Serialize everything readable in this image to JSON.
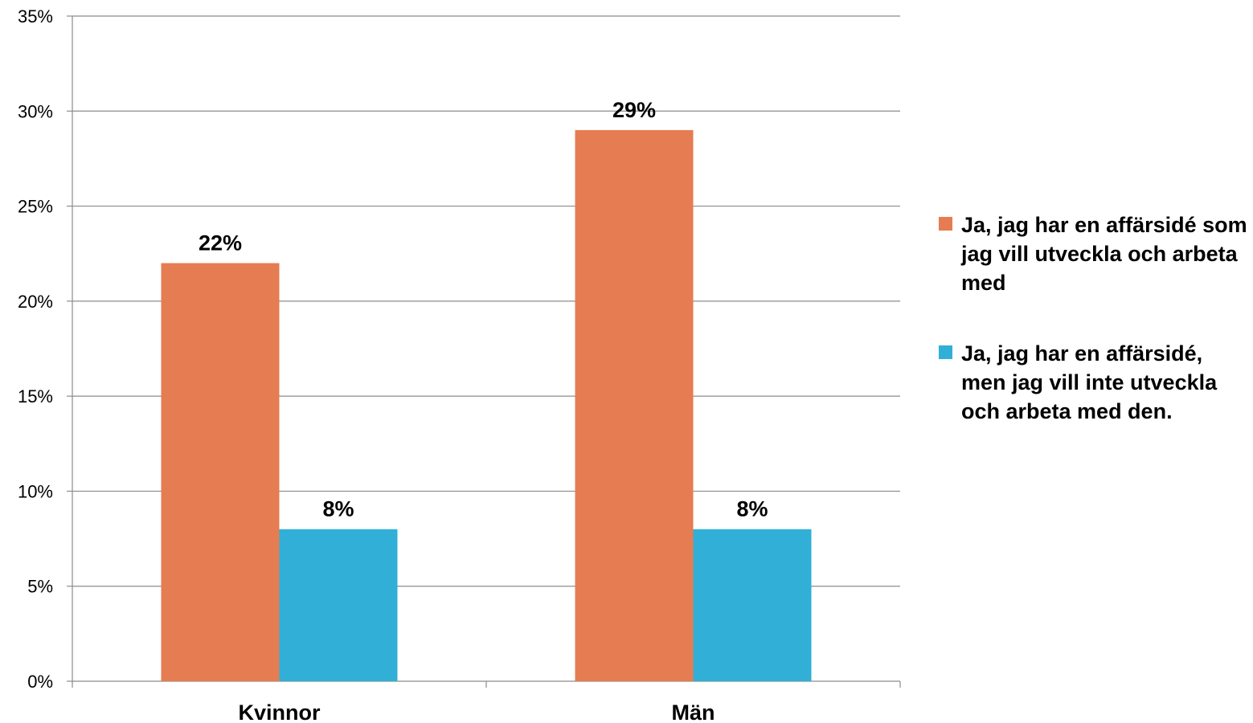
{
  "chart_data": {
    "type": "bar",
    "categories": [
      "Kvinnor",
      "Män"
    ],
    "series": [
      {
        "name": "Ja, jag har en affärsidé som jag vill utveckla och arbeta med",
        "values": [
          22,
          29
        ],
        "labels": [
          "22%",
          "29%"
        ],
        "color": "#E67C52"
      },
      {
        "name": "Ja, jag har en affärsidé, men jag vill inte utveckla och arbeta med den.",
        "values": [
          8,
          8
        ],
        "labels": [
          "8%",
          "8%"
        ],
        "color": "#31AFD6"
      }
    ],
    "ylim": [
      0,
      35
    ],
    "yticks": [
      0,
      5,
      10,
      15,
      20,
      25,
      30,
      35
    ],
    "ytick_labels": [
      "0%",
      "5%",
      "10%",
      "15%",
      "20%",
      "25%",
      "30%",
      "35%"
    ],
    "grid": true,
    "legend_position": "right",
    "title": "",
    "xlabel": "",
    "ylabel": ""
  }
}
